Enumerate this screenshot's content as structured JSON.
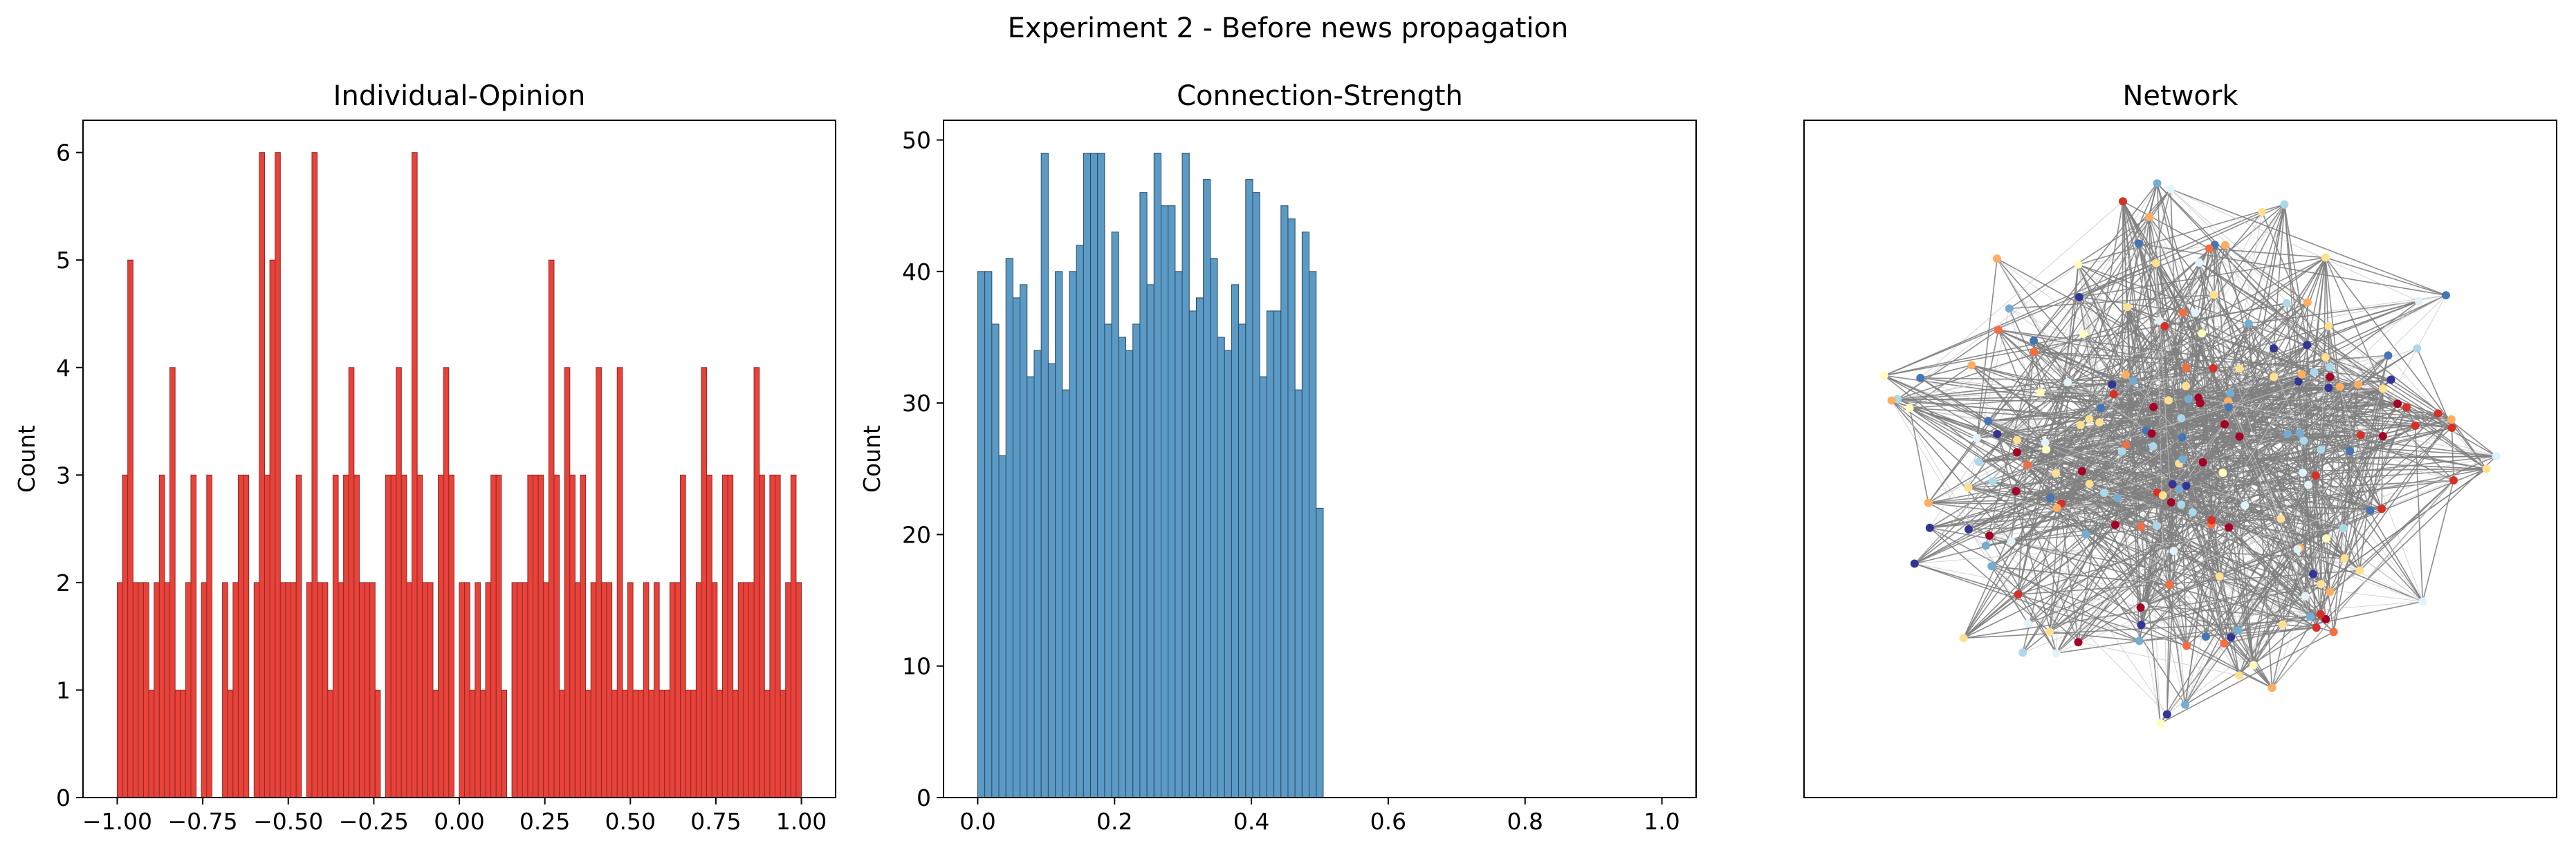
{
  "figure": {
    "suptitle": "Experiment 2 - Before news propagation"
  },
  "chart_data": [
    {
      "type": "bar",
      "subtype": "histogram",
      "title": "Individual-Opinion",
      "xlabel": "",
      "ylabel": "Count",
      "xlim": [
        -1.1,
        1.1
      ],
      "ylim": [
        0,
        6.3
      ],
      "xticks": [
        -1.0,
        -0.75,
        -0.5,
        -0.25,
        0.0,
        0.25,
        0.5,
        0.75,
        1.0
      ],
      "xtick_labels": [
        "−1.00",
        "−0.75",
        "−0.50",
        "−0.25",
        "0.00",
        "0.25",
        "0.50",
        "0.75",
        "1.00"
      ],
      "yticks": [
        0,
        1,
        2,
        3,
        4,
        5,
        6
      ],
      "ytick_labels": [
        "0",
        "1",
        "2",
        "3",
        "4",
        "5",
        "6"
      ],
      "bin_range": [
        -1.0,
        1.0
      ],
      "values": [
        2,
        3,
        5,
        2,
        2,
        2,
        1,
        2,
        3,
        2,
        4,
        1,
        1,
        2,
        3,
        0,
        2,
        3,
        0,
        0,
        2,
        1,
        2,
        3,
        3,
        0,
        2,
        6,
        3,
        5,
        6,
        2,
        2,
        2,
        3,
        0,
        2,
        6,
        2,
        2,
        1,
        3,
        2,
        3,
        4,
        3,
        2,
        2,
        2,
        1,
        0,
        3,
        3,
        4,
        3,
        2,
        6,
        3,
        2,
        2,
        1,
        3,
        4,
        3,
        0,
        2,
        2,
        1,
        2,
        1,
        2,
        3,
        3,
        1,
        0,
        2,
        2,
        2,
        3,
        3,
        3,
        2,
        5,
        3,
        1,
        4,
        3,
        2,
        3,
        1,
        2,
        4,
        2,
        2,
        1,
        4,
        1,
        2,
        1,
        1,
        2,
        1,
        2,
        1,
        1,
        2,
        2,
        3,
        1,
        1,
        2,
        4,
        3,
        2,
        1,
        3,
        3,
        1,
        2,
        2,
        2,
        4,
        3,
        1,
        3,
        3,
        1,
        2,
        3,
        2
      ],
      "bar_color": "#e8423a",
      "edge_color": "#8e2a26",
      "grid": false
    },
    {
      "type": "bar",
      "subtype": "histogram",
      "title": "Connection-Strength",
      "xlabel": "",
      "ylabel": "Count",
      "xlim": [
        -0.05,
        1.05
      ],
      "ylim": [
        0,
        51.5
      ],
      "xticks": [
        0.0,
        0.2,
        0.4,
        0.6,
        0.8,
        1.0
      ],
      "xtick_labels": [
        "0.0",
        "0.2",
        "0.4",
        "0.6",
        "0.8",
        "1.0"
      ],
      "yticks": [
        0,
        10,
        20,
        30,
        40,
        50
      ],
      "ytick_labels": [
        "0",
        "10",
        "20",
        "30",
        "40",
        "50"
      ],
      "bin_range": [
        0.0,
        0.505
      ],
      "values": [
        40,
        40,
        36,
        26,
        41,
        38,
        39,
        32,
        34,
        49,
        33,
        40,
        31,
        40,
        42,
        49,
        49,
        49,
        36,
        43,
        35,
        34,
        36,
        46,
        39,
        49,
        45,
        45,
        40,
        49,
        37,
        38,
        47,
        41,
        35,
        34,
        39,
        36,
        47,
        46,
        32,
        37,
        37,
        45,
        44,
        31,
        43,
        40,
        22
      ],
      "bar_color": "#5b9ac5",
      "edge_color": "#2b4a62",
      "grid": false
    },
    {
      "type": "network",
      "title": "Network",
      "edge_color": "#808080",
      "node_palette": [
        "#a50026",
        "#d73027",
        "#f46d43",
        "#fdae61",
        "#fee090",
        "#ffffbf",
        "#e0f3f8",
        "#abd9e9",
        "#74add1",
        "#4575b4",
        "#313695"
      ],
      "node_count": 200,
      "edge_count": 1100
    }
  ]
}
